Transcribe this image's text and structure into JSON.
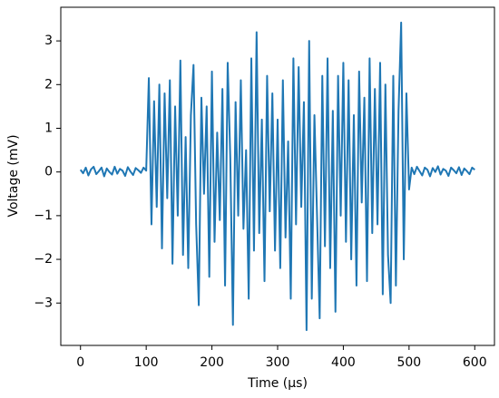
{
  "chart_data": {
    "type": "line",
    "x_label": "Time (µs)",
    "y_label": "Voltage (mV)",
    "x": [
      0,
      4,
      8,
      12,
      16,
      20,
      24,
      28,
      32,
      36,
      40,
      44,
      48,
      52,
      56,
      60,
      64,
      68,
      72,
      76,
      80,
      84,
      88,
      92,
      96,
      100,
      104,
      108,
      112,
      116,
      120,
      124,
      128,
      132,
      136,
      140,
      144,
      148,
      152,
      156,
      160,
      164,
      168,
      172,
      176,
      180,
      184,
      188,
      192,
      196,
      200,
      204,
      208,
      212,
      216,
      220,
      224,
      228,
      232,
      236,
      240,
      244,
      248,
      252,
      256,
      260,
      264,
      268,
      272,
      276,
      280,
      284,
      288,
      292,
      296,
      300,
      304,
      308,
      312,
      316,
      320,
      324,
      328,
      332,
      336,
      340,
      344,
      348,
      352,
      356,
      360,
      364,
      368,
      372,
      376,
      380,
      384,
      388,
      392,
      396,
      400,
      404,
      408,
      412,
      416,
      420,
      424,
      428,
      432,
      436,
      440,
      444,
      448,
      452,
      456,
      460,
      464,
      468,
      472,
      476,
      480,
      484,
      488,
      492,
      496,
      500,
      504,
      508,
      512,
      516,
      520,
      524,
      528,
      532,
      536,
      540,
      544,
      548,
      552,
      556,
      560,
      564,
      568,
      572,
      576,
      580,
      584,
      588,
      592,
      596,
      600
    ],
    "series": [
      {
        "name": "Voltage",
        "color": "#1f77b4",
        "values": [
          0.05,
          -0.03,
          0.1,
          -0.08,
          0.06,
          0.12,
          -0.05,
          0.02,
          0.1,
          -0.1,
          0.08,
          0.0,
          -0.06,
          0.12,
          -0.04,
          0.07,
          0.03,
          -0.09,
          0.11,
          0.01,
          -0.07,
          0.09,
          0.04,
          -0.02,
          0.1,
          0.03,
          2.15,
          -1.2,
          1.62,
          -0.8,
          2.0,
          -1.75,
          1.8,
          -0.6,
          2.1,
          -2.1,
          1.5,
          -1.0,
          2.55,
          -1.9,
          0.8,
          -2.2,
          1.3,
          2.45,
          -1.2,
          -3.05,
          1.7,
          -0.5,
          1.5,
          -2.4,
          2.3,
          -1.6,
          0.9,
          -1.1,
          1.9,
          -2.6,
          2.5,
          0.3,
          -3.5,
          1.6,
          -1.0,
          2.1,
          -1.3,
          0.5,
          -2.9,
          2.6,
          -1.8,
          3.2,
          -1.4,
          1.2,
          -2.5,
          2.2,
          -0.9,
          1.8,
          -1.8,
          1.2,
          -2.2,
          2.1,
          -1.5,
          0.7,
          -2.9,
          2.6,
          -1.2,
          2.4,
          -0.8,
          1.6,
          -3.62,
          3.0,
          -2.9,
          1.3,
          -1.0,
          -3.35,
          2.2,
          -1.7,
          2.6,
          -2.2,
          1.4,
          -3.2,
          2.2,
          -1.0,
          2.5,
          -1.6,
          2.1,
          -2.0,
          1.3,
          -2.6,
          2.3,
          -0.7,
          1.7,
          -2.5,
          2.6,
          -1.4,
          1.9,
          -1.2,
          2.5,
          -2.8,
          2.0,
          -1.9,
          -3.0,
          2.2,
          -2.6,
          1.4,
          3.42,
          -2.0,
          1.8,
          -0.4,
          0.1,
          -0.05,
          0.12,
          0.02,
          -0.08,
          0.1,
          0.05,
          -0.1,
          0.09,
          0.0,
          0.13,
          -0.06,
          0.07,
          0.03,
          -0.09,
          0.1,
          0.04,
          -0.03,
          0.11,
          -0.07,
          0.08,
          0.02,
          -0.05,
          0.1,
          0.05
        ]
      }
    ],
    "xlim": [
      -30,
      630
    ],
    "xticks": [
      0,
      100,
      200,
      300,
      400,
      500,
      600
    ],
    "ylim": [
      -3.97,
      3.77
    ],
    "yticks": [
      {
        "value": -3,
        "label": "−3"
      },
      {
        "value": -2,
        "label": "−2"
      },
      {
        "value": -1,
        "label": "−1"
      },
      0,
      1,
      2,
      3
    ],
    "grid": false
  }
}
